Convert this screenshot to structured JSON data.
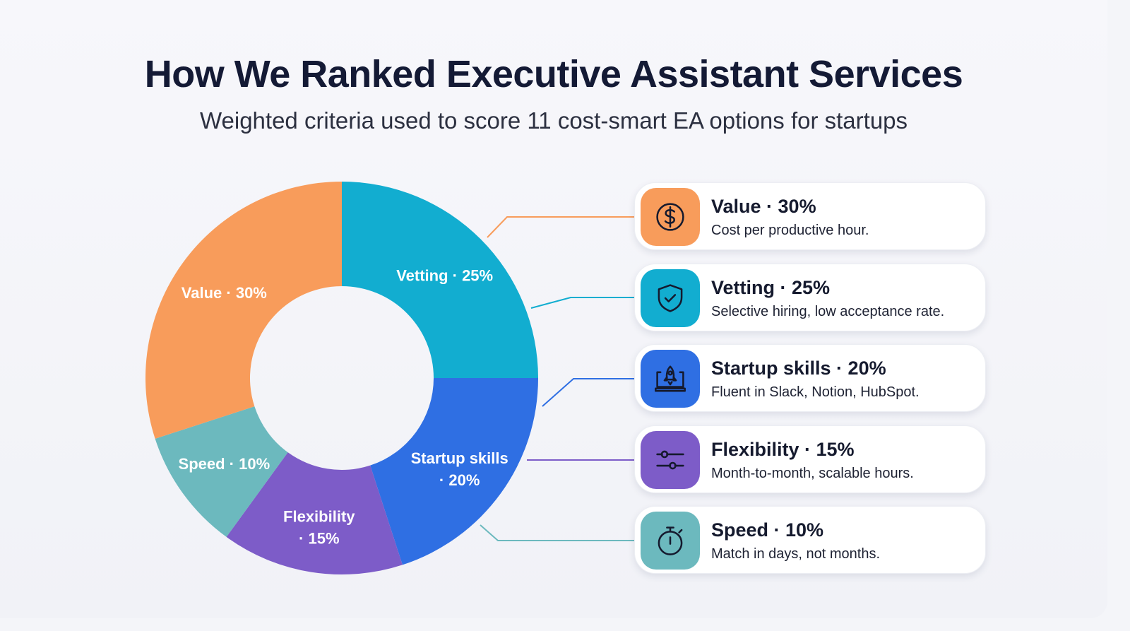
{
  "title": "How We Ranked Executive Assistant Services",
  "subtitle": "Weighted criteria used to score 11 cost-smart EA options for startups",
  "chart_data": {
    "type": "pie",
    "style": "donut",
    "start": "top, clockwise",
    "slices": [
      {
        "name": "Vetting",
        "value": 25,
        "label": "Vetting · 25%",
        "color": "#12ADD0"
      },
      {
        "name": "Startup skills",
        "value": 20,
        "label": "Startup skills · 20%",
        "color": "#2F6FE3"
      },
      {
        "name": "Flexibility",
        "value": 15,
        "label": "Flexibility · 15%",
        "color": "#7D5CC8"
      },
      {
        "name": "Speed",
        "value": 10,
        "label": "Speed · 10%",
        "color": "#6CB9BE"
      },
      {
        "name": "Value",
        "value": 30,
        "label": "Value · 30%",
        "color": "#F89C5B"
      }
    ]
  },
  "legend": [
    {
      "title": "Value · 30%",
      "desc": "Cost per productive hour.",
      "icon": "dollar-icon",
      "color": "#F89C5B"
    },
    {
      "title": "Vetting · 25%",
      "desc": "Selective hiring, low acceptance rate.",
      "icon": "shield-check-icon",
      "color": "#12ADD0"
    },
    {
      "title": "Startup skills · 20%",
      "desc": "Fluent in Slack, Notion, HubSpot.",
      "icon": "rocket-laptop-icon",
      "color": "#2F6FE3"
    },
    {
      "title": "Flexibility · 15%",
      "desc": "Month-to-month, scalable hours.",
      "icon": "sliders-icon",
      "color": "#7D5CC8"
    },
    {
      "title": "Speed · 10%",
      "desc": "Match in days, not months.",
      "icon": "stopwatch-icon",
      "color": "#6CB9BE"
    }
  ]
}
